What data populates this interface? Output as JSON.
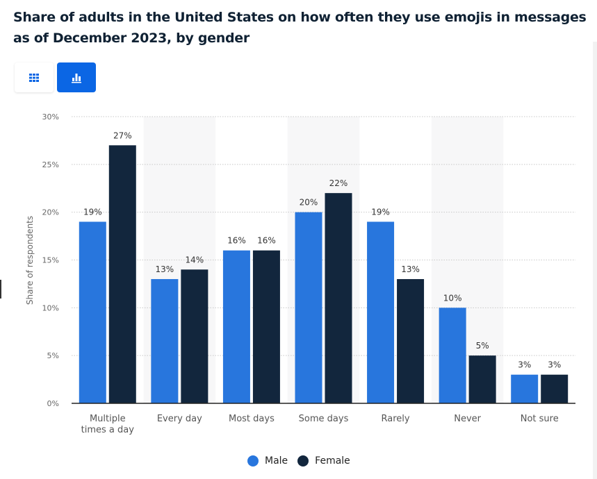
{
  "title": "Share of adults in the United States on how often they use emojis in messages as of December 2023, by gender",
  "toolbar": {
    "table_view_icon": "grid-icon",
    "chart_view_icon": "bar-chart-icon",
    "active_view": "chart"
  },
  "colors": {
    "male": "#2876dd",
    "female": "#12263d",
    "accent": "#0b66e4"
  },
  "chart_data": {
    "type": "bar",
    "title": "Share of adults in the United States on how often they use emojis in messages as of December 2023, by gender",
    "xlabel": "",
    "ylabel": "Share of respondents",
    "ylim": [
      0,
      30
    ],
    "yticks": [
      "0%",
      "5%",
      "10%",
      "15%",
      "20%",
      "25%",
      "30%"
    ],
    "ytick_values": [
      0,
      5,
      10,
      15,
      20,
      25,
      30
    ],
    "grid": true,
    "legend_position": "bottom-center",
    "categories": [
      "Multiple times a day",
      "Every day",
      "Most days",
      "Some days",
      "Rarely",
      "Never",
      "Not sure"
    ],
    "category_lines": [
      [
        "Multiple",
        "times a day"
      ],
      [
        "Every day"
      ],
      [
        "Most days"
      ],
      [
        "Some days"
      ],
      [
        "Rarely"
      ],
      [
        "Never"
      ],
      [
        "Not sure"
      ]
    ],
    "series": [
      {
        "name": "Male",
        "values": [
          19,
          13,
          16,
          20,
          19,
          10,
          3
        ],
        "labels": [
          "19%",
          "13%",
          "16%",
          "20%",
          "19%",
          "10%",
          "3%"
        ]
      },
      {
        "name": "Female",
        "values": [
          27,
          14,
          16,
          22,
          13,
          5,
          3
        ],
        "labels": [
          "27%",
          "14%",
          "16%",
          "22%",
          "13%",
          "5%",
          "3%"
        ]
      }
    ]
  },
  "legend": {
    "items": [
      {
        "label": "Male"
      },
      {
        "label": "Female"
      }
    ]
  }
}
